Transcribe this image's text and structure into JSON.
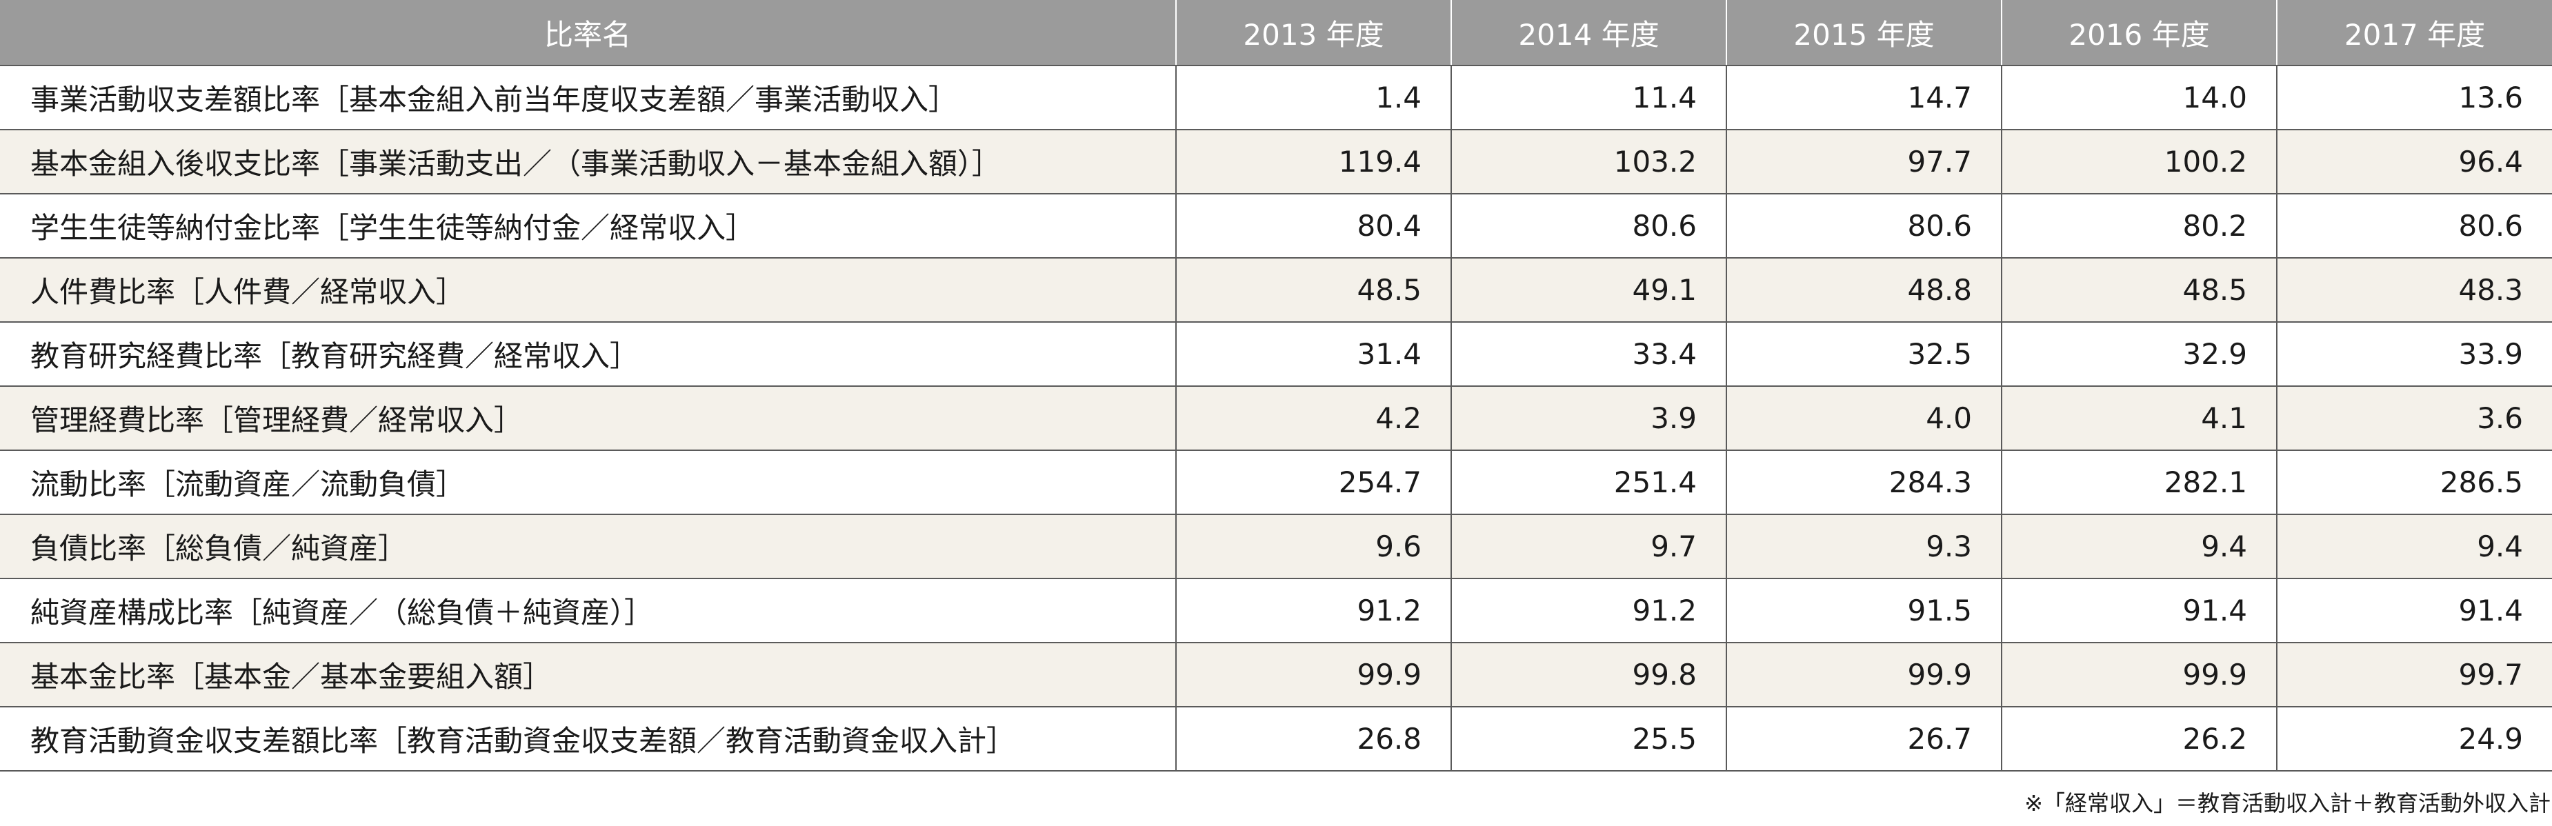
{
  "table": {
    "headers": [
      "比率名",
      "2013 年度",
      "2014 年度",
      "2015 年度",
      "2016 年度",
      "2017 年度"
    ],
    "rows": [
      {
        "name": "事業活動収支差額比率［基本金組入前当年度収支差額／事業活動収入］",
        "values": [
          "1.4",
          "11.4",
          "14.7",
          "14.0",
          "13.6"
        ]
      },
      {
        "name": "基本金組入後収支比率［事業活動支出／（事業活動収入－基本金組入額）］",
        "values": [
          "119.4",
          "103.2",
          "97.7",
          "100.2",
          "96.4"
        ]
      },
      {
        "name": "学生生徒等納付金比率［学生生徒等納付金／経常収入］",
        "values": [
          "80.4",
          "80.6",
          "80.6",
          "80.2",
          "80.6"
        ]
      },
      {
        "name": "人件費比率［人件費／経常収入］",
        "values": [
          "48.5",
          "49.1",
          "48.8",
          "48.5",
          "48.3"
        ]
      },
      {
        "name": "教育研究経費比率［教育研究経費／経常収入］",
        "values": [
          "31.4",
          "33.4",
          "32.5",
          "32.9",
          "33.9"
        ]
      },
      {
        "name": "管理経費比率［管理経費／経常収入］",
        "values": [
          "4.2",
          "3.9",
          "4.0",
          "4.1",
          "3.6"
        ]
      },
      {
        "name": "流動比率［流動資産／流動負債］",
        "values": [
          "254.7",
          "251.4",
          "284.3",
          "282.1",
          "286.5"
        ]
      },
      {
        "name": "負債比率［総負債／純資産］",
        "values": [
          "9.6",
          "9.7",
          "9.3",
          "9.4",
          "9.4"
        ]
      },
      {
        "name": "純資産構成比率［純資産／（総負債＋純資産）］",
        "values": [
          "91.2",
          "91.2",
          "91.5",
          "91.4",
          "91.4"
        ]
      },
      {
        "name": "基本金比率［基本金／基本金要組入額］",
        "values": [
          "99.9",
          "99.8",
          "99.9",
          "99.9",
          "99.7"
        ]
      },
      {
        "name": "教育活動資金収支差額比率［教育活動資金収支差額／教育活動資金収入計］",
        "values": [
          "26.8",
          "25.5",
          "26.7",
          "26.2",
          "24.9"
        ]
      }
    ]
  },
  "footnote": "※「経常収入」＝教育活動収入計＋教育活動外収入計",
  "colors": {
    "header_bg": "#9b9b9b",
    "header_text": "#ffffff",
    "row_alt_bg": "#f4f1ea",
    "border": "#5a5a5a"
  }
}
